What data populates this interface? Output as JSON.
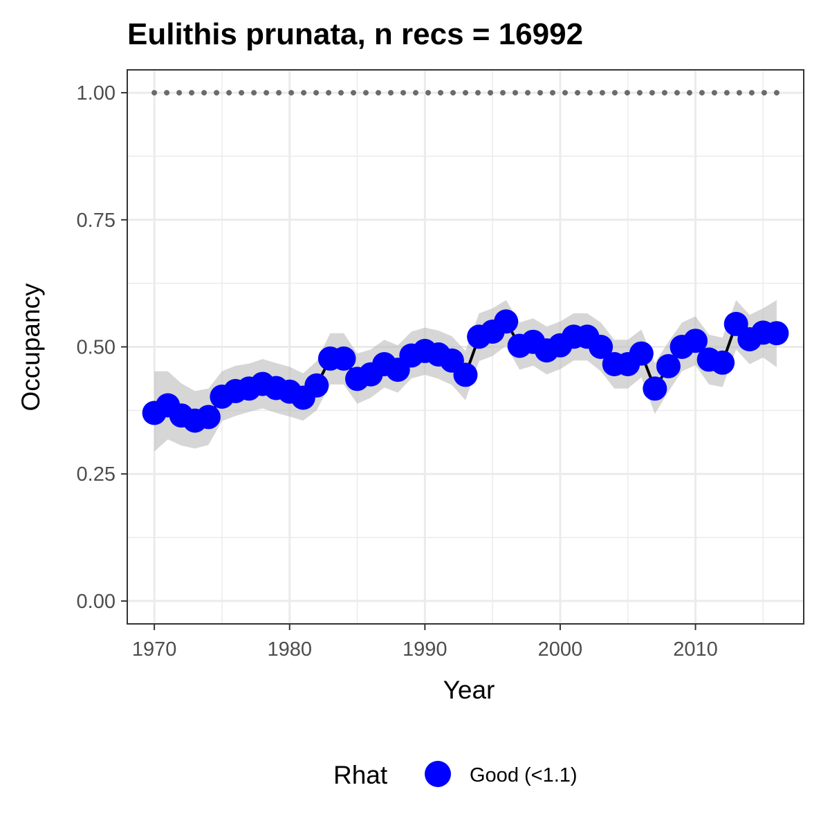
{
  "chart_data": {
    "type": "line",
    "title": "Eulithis prunata, n recs = 16992",
    "xlabel": "Year",
    "ylabel": "Occupancy",
    "xlim": [
      1968,
      2018
    ],
    "ylim": [
      -0.045,
      1.045
    ],
    "x_ticks": [
      1970,
      1980,
      1990,
      2000,
      2010
    ],
    "x_tick_labels": [
      "1970",
      "1980",
      "1990",
      "2000",
      "2010"
    ],
    "y_ticks": [
      0,
      0.25,
      0.5,
      0.75,
      1.0
    ],
    "y_tick_labels": [
      "0.00",
      "0.25",
      "0.50",
      "0.75",
      "1.00"
    ],
    "grid": true,
    "x": [
      1970,
      1971,
      1972,
      1973,
      1974,
      1975,
      1976,
      1977,
      1978,
      1979,
      1980,
      1981,
      1982,
      1983,
      1984,
      1985,
      1986,
      1987,
      1988,
      1989,
      1990,
      1991,
      1992,
      1993,
      1994,
      1995,
      1996,
      1997,
      1998,
      1999,
      2000,
      2001,
      2002,
      2003,
      2004,
      2005,
      2006,
      2007,
      2008,
      2009,
      2010,
      2011,
      2012,
      2013,
      2014,
      2015,
      2016
    ],
    "series": [
      {
        "name": "Occupancy",
        "values": [
          0.37,
          0.385,
          0.365,
          0.355,
          0.362,
          0.402,
          0.413,
          0.418,
          0.427,
          0.419,
          0.412,
          0.4,
          0.424,
          0.477,
          0.477,
          0.437,
          0.446,
          0.466,
          0.455,
          0.483,
          0.492,
          0.485,
          0.473,
          0.445,
          0.52,
          0.53,
          0.55,
          0.502,
          0.51,
          0.493,
          0.503,
          0.52,
          0.52,
          0.5,
          0.466,
          0.466,
          0.487,
          0.418,
          0.462,
          0.5,
          0.512,
          0.475,
          0.469,
          0.545,
          0.515,
          0.528,
          0.527
        ],
        "lower": [
          0.294,
          0.318,
          0.306,
          0.3,
          0.307,
          0.354,
          0.364,
          0.372,
          0.379,
          0.37,
          0.363,
          0.355,
          0.375,
          0.426,
          0.426,
          0.388,
          0.4,
          0.42,
          0.41,
          0.438,
          0.445,
          0.437,
          0.425,
          0.395,
          0.472,
          0.482,
          0.502,
          0.455,
          0.463,
          0.446,
          0.456,
          0.473,
          0.473,
          0.452,
          0.418,
          0.418,
          0.44,
          0.368,
          0.412,
          0.452,
          0.464,
          0.426,
          0.421,
          0.495,
          0.466,
          0.479,
          0.46
        ],
        "upper": [
          0.452,
          0.452,
          0.428,
          0.413,
          0.418,
          0.452,
          0.463,
          0.467,
          0.476,
          0.468,
          0.461,
          0.448,
          0.472,
          0.527,
          0.527,
          0.487,
          0.495,
          0.514,
          0.503,
          0.53,
          0.538,
          0.532,
          0.521,
          0.492,
          0.566,
          0.576,
          0.592,
          0.548,
          0.556,
          0.54,
          0.55,
          0.566,
          0.566,
          0.548,
          0.514,
          0.514,
          0.534,
          0.468,
          0.51,
          0.548,
          0.56,
          0.524,
          0.518,
          0.592,
          0.563,
          0.576,
          0.592
        ]
      },
      {
        "name": "dotted",
        "values": [
          1,
          1,
          1,
          1,
          1,
          1,
          1,
          1,
          1,
          1,
          1,
          1,
          1,
          1,
          1,
          1,
          1,
          1,
          1,
          1,
          1,
          1,
          1,
          1,
          1,
          1,
          1,
          1,
          1,
          1,
          1,
          1,
          1,
          1,
          1,
          1,
          1,
          1,
          1,
          1,
          1,
          1,
          1,
          1,
          1,
          1,
          1
        ]
      }
    ],
    "rhat_category": "Good (<1.1)",
    "legend": {
      "title": "Rhat",
      "entries": [
        {
          "label": "Good (<1.1)",
          "color": "#0000ff"
        }
      ],
      "placement": "bottom"
    },
    "colors": {
      "point": "#0000ff",
      "line": "#000000",
      "ribbon": "#bdbdbd",
      "dotted": "#6b6b6b",
      "panel_border": "#333333",
      "grid": "#ebebeb"
    }
  }
}
